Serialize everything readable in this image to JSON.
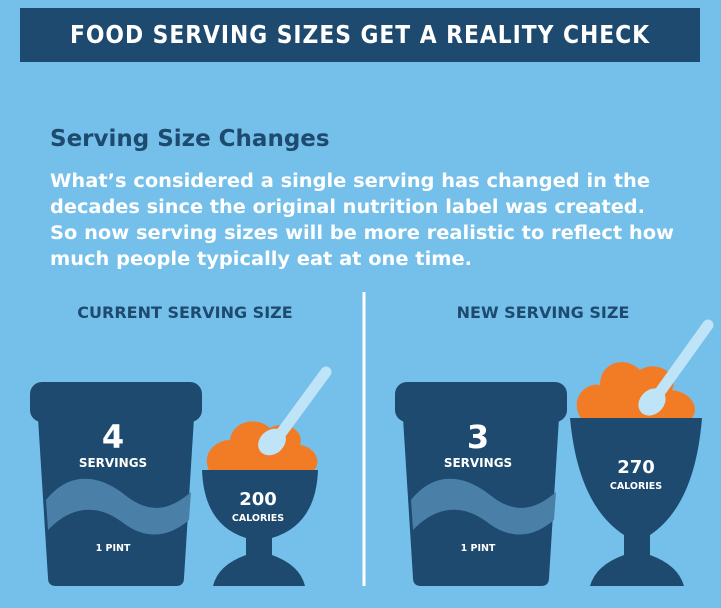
{
  "header": {
    "title": "FOOD SERVING SIZES GET A REALITY CHECK"
  },
  "section": {
    "heading": "Serving Size Changes",
    "body_lines": [
      "What’s considered a single serving has changed in the",
      "decades since the original nutrition label was created.",
      "So now serving sizes will be more realistic to reflect how",
      "much people typically eat at one time."
    ]
  },
  "panels": [
    {
      "label": "CURRENT SERVING SIZE",
      "servings": 4,
      "servings_label": "SERVINGS",
      "container": "1 PINT",
      "calories": 200,
      "calories_label": "CALORIES"
    },
    {
      "label": "NEW SERVING SIZE",
      "servings": 3,
      "servings_label": "SERVINGS",
      "container": "1 PINT",
      "calories": 270,
      "calories_label": "CALORIES"
    }
  ]
}
